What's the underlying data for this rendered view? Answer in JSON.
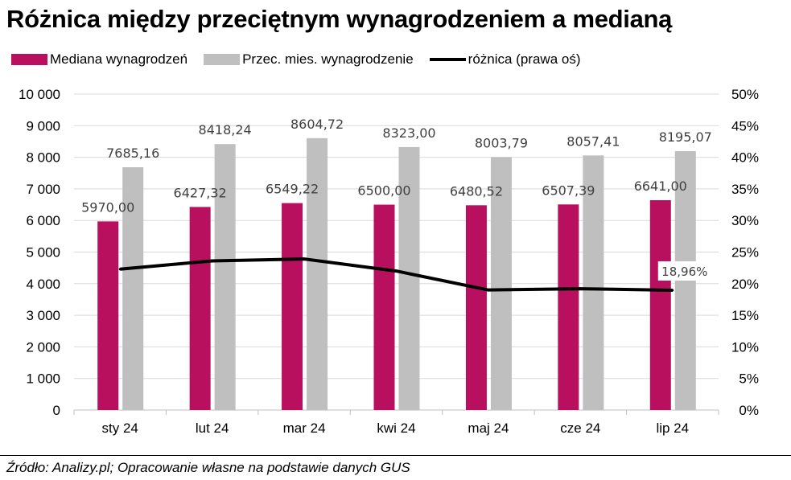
{
  "title": "Różnica między przeciętnym wynagrodzeniem a medianą",
  "footer": "Źródło: Analizy.pl; Opracowanie własne na podstawie danych GUS",
  "chart_data": {
    "type": "bar",
    "categories": [
      "sty 24",
      "lut 24",
      "mar 24",
      "kwi 24",
      "maj 24",
      "cze 24",
      "lip 24"
    ],
    "series": [
      {
        "name": "Mediana wynagrodzeń",
        "color": "#b8105e",
        "values": [
          5970.0,
          6427.32,
          6549.22,
          6500.0,
          6480.52,
          6507.39,
          6641.0
        ],
        "labels": [
          "5970,00",
          "6427,32",
          "6549,22",
          "6500,00",
          "6480,52",
          "6507,39",
          "6641,00"
        ]
      },
      {
        "name": "Przec. mies. wynagrodzenie",
        "color": "#bfbfbf",
        "values": [
          7685.16,
          8418.24,
          8604.72,
          8323.0,
          8003.79,
          8057.41,
          8195.07
        ],
        "labels": [
          "7685,16",
          "8418,24",
          "8604,72",
          "8323,00",
          "8003,79",
          "8057,41",
          "8195,07"
        ]
      },
      {
        "name": "różnica (prawa oś)",
        "type": "line",
        "axis": "right",
        "color": "#000000",
        "values": [
          22.3,
          23.6,
          23.9,
          22.0,
          19.0,
          19.2,
          18.96
        ],
        "labels": [
          "",
          "",
          "",
          "",
          "",
          "",
          "18,96%"
        ]
      }
    ],
    "y_left": {
      "ylim": [
        0,
        10000
      ],
      "ticks": [
        0,
        1000,
        2000,
        3000,
        4000,
        5000,
        6000,
        7000,
        8000,
        9000,
        10000
      ],
      "tick_labels": [
        "0",
        "1 000",
        "2 000",
        "3 000",
        "4 000",
        "5 000",
        "6 000",
        "7 000",
        "8 000",
        "9 000",
        "10 000"
      ]
    },
    "y_right": {
      "ylim": [
        0,
        50
      ],
      "ticks": [
        0,
        5,
        10,
        15,
        20,
        25,
        30,
        35,
        40,
        45,
        50
      ],
      "tick_labels": [
        "0%",
        "5%",
        "10%",
        "15%",
        "20%",
        "25%",
        "30%",
        "35%",
        "40%",
        "45%",
        "50%"
      ]
    },
    "grid": true,
    "legend": "top-left"
  }
}
